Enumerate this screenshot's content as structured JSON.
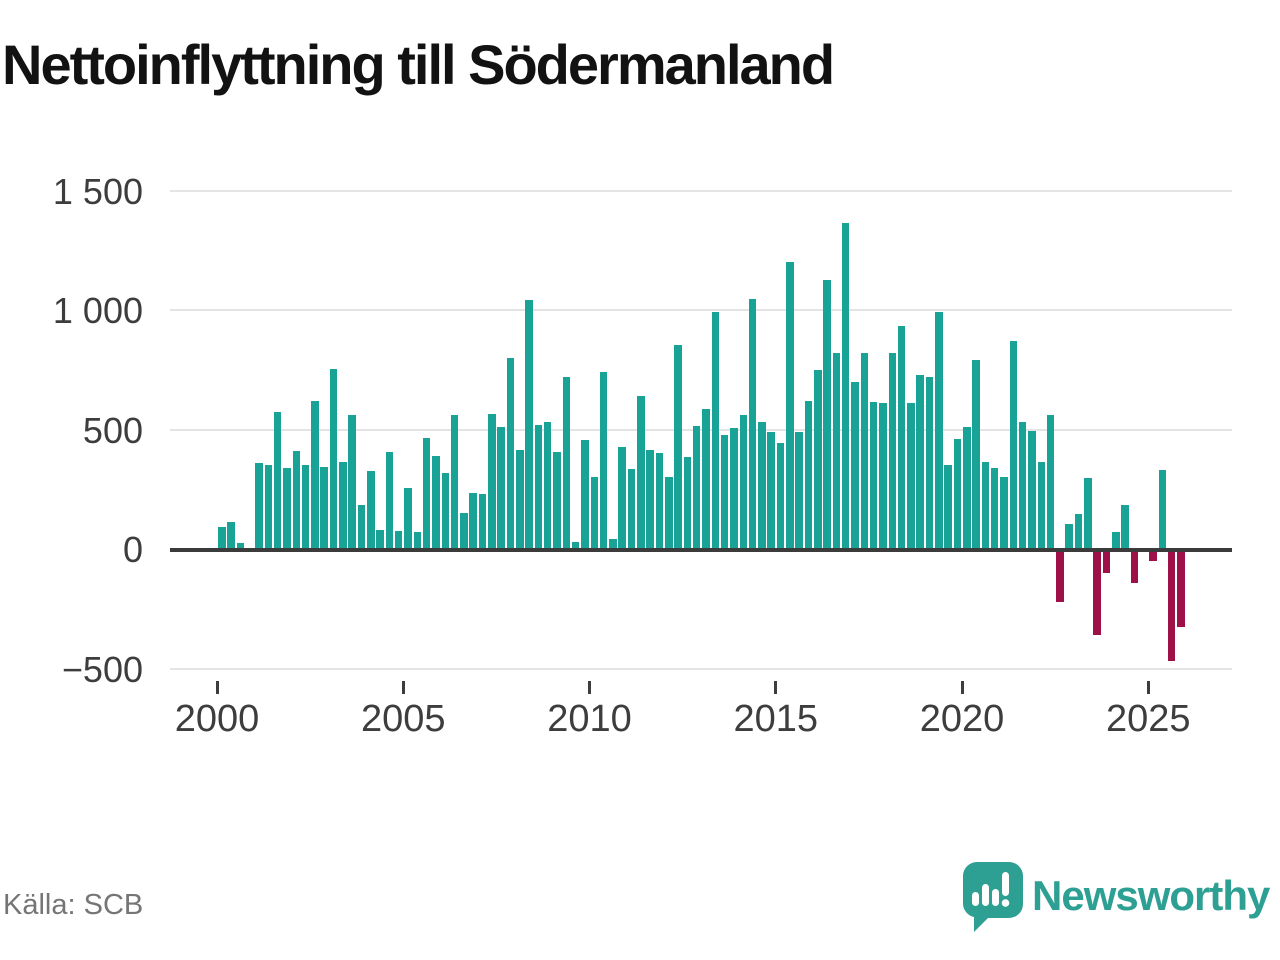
{
  "title": "Nettoinflyttning till Södermanland",
  "source": "Källa: SCB",
  "brand": {
    "name": "Newsworthy",
    "logo_icon": "speech-bubble-bar-chart-icon"
  },
  "colors": {
    "positive_bar": "#18a396",
    "negative_bar": "#9e1048",
    "zero_axis": "#3b3b3b",
    "gridline": "#e4e4e4",
    "brand_teal": "#2ea093"
  },
  "chart_data": {
    "type": "bar",
    "title": "Nettoinflyttning till Södermanland",
    "frequency": "quarterly",
    "start": "2000-Q1",
    "end": "2025-Q4",
    "values": [
      90,
      115,
      25,
      0,
      360,
      350,
      575,
      340,
      410,
      350,
      620,
      345,
      755,
      365,
      560,
      185,
      325,
      80,
      405,
      75,
      255,
      70,
      465,
      390,
      320,
      560,
      150,
      235,
      230,
      565,
      510,
      800,
      415,
      1040,
      520,
      530,
      405,
      720,
      30,
      455,
      300,
      740,
      40,
      425,
      335,
      640,
      415,
      400,
      300,
      855,
      385,
      515,
      585,
      990,
      475,
      505,
      560,
      1045,
      530,
      490,
      445,
      1200,
      490,
      620,
      750,
      1125,
      820,
      1365,
      700,
      820,
      615,
      610,
      820,
      935,
      610,
      730,
      720,
      990,
      350,
      460,
      510,
      790,
      365,
      340,
      300,
      870,
      530,
      495,
      365,
      560,
      -215,
      105,
      145,
      295,
      -350,
      -90,
      70,
      185,
      -135,
      0,
      -40,
      330,
      -460,
      -320
    ],
    "y_ticks": [
      1500,
      1000,
      500,
      0,
      -500
    ],
    "y_tick_labels": [
      "1 500",
      "1 000",
      "500",
      "0",
      "−500"
    ],
    "x_tick_labels": [
      "2000",
      "2005",
      "2010",
      "2015",
      "2020",
      "2025"
    ],
    "ylim": [
      -500,
      1500
    ],
    "grid": true,
    "legend": "none",
    "xlabel": "",
    "ylabel": ""
  }
}
